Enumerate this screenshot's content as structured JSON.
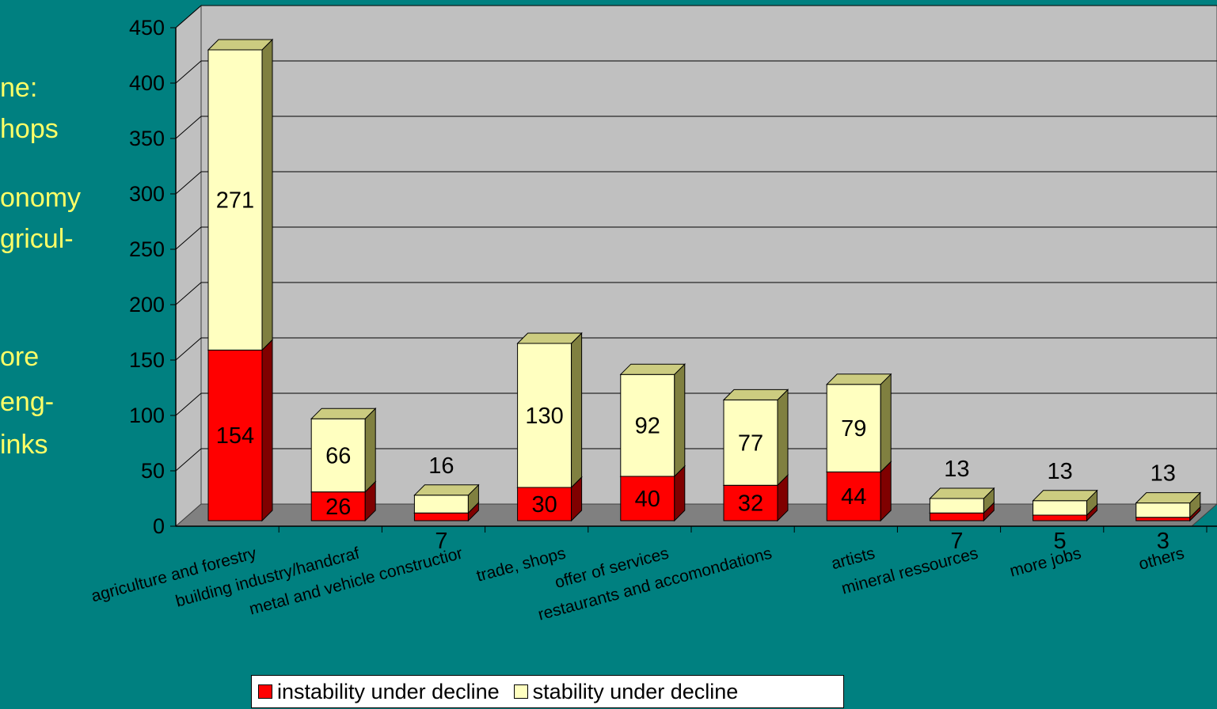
{
  "side_text": [
    "ne:",
    "hops",
    "onomy",
    "gricul-",
    "ore",
    "eng-",
    "inks"
  ],
  "colors": {
    "background": "#008080",
    "side_text": "#FFFF66",
    "instability": "#FF0000",
    "stability": "#FFFFC0",
    "wall": "#C0C0C0",
    "floor": "#808080"
  },
  "chart_data": {
    "type": "bar",
    "stacked": true,
    "three_d": true,
    "title": "",
    "xlabel": "",
    "ylabel": "",
    "ylim": [
      0,
      450
    ],
    "yticks": [
      0,
      50,
      100,
      150,
      200,
      250,
      300,
      350,
      400,
      450
    ],
    "grid": true,
    "legend": "bottom",
    "categories": [
      "agriculture and forestry",
      "building industry/handcraft",
      "metal and vehicle construction",
      "trade, shops",
      "offer of services",
      "restaurants and accomondations",
      "artists",
      "mineral ressources",
      "more jobs",
      "others"
    ],
    "category_tick_labels": [
      "agriculture and forestry",
      "building industry/handcraf",
      "metal and vehicle constructior",
      "trade, shops",
      "offer of services",
      "restaurants and accomondations",
      "artists",
      "mineral ressources",
      "more jobs",
      "others"
    ],
    "series": [
      {
        "name": "instability under decline",
        "values": [
          154,
          26,
          7,
          30,
          40,
          32,
          44,
          7,
          5,
          3
        ]
      },
      {
        "name": "stability under decline",
        "values": [
          271,
          66,
          16,
          130,
          92,
          77,
          79,
          13,
          13,
          13
        ]
      }
    ]
  }
}
